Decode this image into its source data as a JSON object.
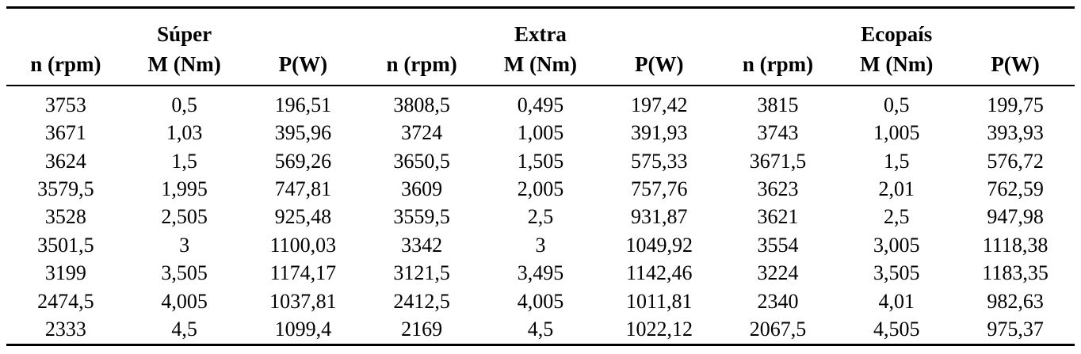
{
  "table": {
    "groups": [
      {
        "label": "Súper"
      },
      {
        "label": "Extra"
      },
      {
        "label": "Ecopaís"
      }
    ],
    "column_headers": [
      "n (rpm)",
      "M (Nm)",
      "P(W)"
    ],
    "rows": [
      [
        "3753",
        "0,5",
        "196,51",
        "3808,5",
        "0,495",
        "197,42",
        "3815",
        "0,5",
        "199,75"
      ],
      [
        "3671",
        "1,03",
        "395,96",
        "3724",
        "1,005",
        "391,93",
        "3743",
        "1,005",
        "393,93"
      ],
      [
        "3624",
        "1,5",
        "569,26",
        "3650,5",
        "1,505",
        "575,33",
        "3671,5",
        "1,5",
        "576,72"
      ],
      [
        "3579,5",
        "1,995",
        "747,81",
        "3609",
        "2,005",
        "757,76",
        "3623",
        "2,01",
        "762,59"
      ],
      [
        "3528",
        "2,505",
        "925,48",
        "3559,5",
        "2,5",
        "931,87",
        "3621",
        "2,5",
        "947,98"
      ],
      [
        "3501,5",
        "3",
        "1100,03",
        "3342",
        "3",
        "1049,92",
        "3554",
        "3,005",
        "1118,38"
      ],
      [
        "3199",
        "3,505",
        "1174,17",
        "3121,5",
        "3,495",
        "1142,46",
        "3224",
        "3,505",
        "1183,35"
      ],
      [
        "2474,5",
        "4,005",
        "1037,81",
        "2412,5",
        "4,005",
        "1011,81",
        "2340",
        "4,01",
        "982,63"
      ],
      [
        "2333",
        "4,5",
        "1099,4",
        "2169",
        "4,5",
        "1022,12",
        "2067,5",
        "4,505",
        "975,37"
      ]
    ],
    "colors": {
      "text": "#000000",
      "background": "#ffffff",
      "rule": "#000000"
    }
  },
  "chart_data": {
    "type": "table",
    "title": "",
    "column_groups": [
      "Súper",
      "Extra",
      "Ecopaís"
    ],
    "columns_per_group": [
      "n (rpm)",
      "M (Nm)",
      "P(W)"
    ],
    "series": [
      {
        "name": "Súper",
        "n_rpm": [
          3753,
          3671,
          3624,
          3579.5,
          3528,
          3501.5,
          3199,
          2474.5,
          2333
        ],
        "M_Nm": [
          0.5,
          1.03,
          1.5,
          1.995,
          2.505,
          3,
          3.505,
          4.005,
          4.5
        ],
        "P_W": [
          196.51,
          395.96,
          569.26,
          747.81,
          925.48,
          1100.03,
          1174.17,
          1037.81,
          1099.4
        ]
      },
      {
        "name": "Extra",
        "n_rpm": [
          3808.5,
          3724,
          3650.5,
          3609,
          3559.5,
          3342,
          3121.5,
          2412.5,
          2169
        ],
        "M_Nm": [
          0.495,
          1.005,
          1.505,
          2.005,
          2.5,
          3,
          3.495,
          4.005,
          4.5
        ],
        "P_W": [
          197.42,
          391.93,
          575.33,
          757.76,
          931.87,
          1049.92,
          1142.46,
          1011.81,
          1022.12
        ]
      },
      {
        "name": "Ecopaís",
        "n_rpm": [
          3815,
          3743,
          3671.5,
          3623,
          3621,
          3554,
          3224,
          2340,
          2067.5
        ],
        "M_Nm": [
          0.5,
          1.005,
          1.5,
          2.01,
          2.5,
          3.005,
          3.505,
          4.01,
          4.505
        ],
        "P_W": [
          199.75,
          393.93,
          576.72,
          762.59,
          947.98,
          1118.38,
          1183.35,
          982.63,
          975.37
        ]
      }
    ]
  }
}
